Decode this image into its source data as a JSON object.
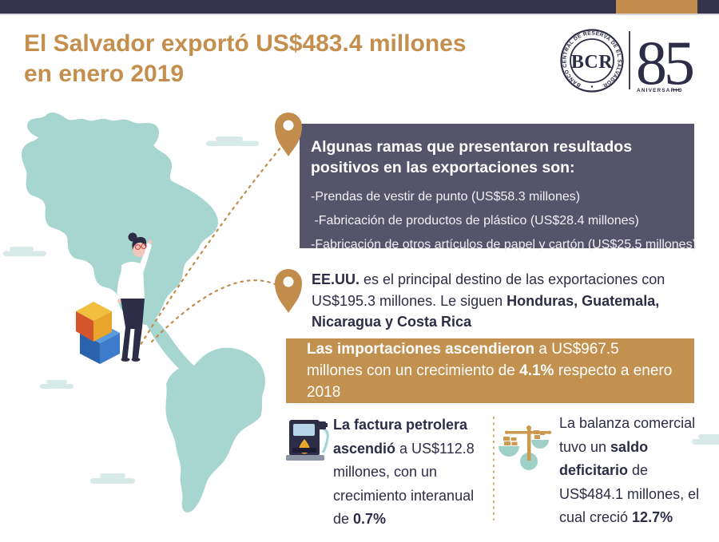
{
  "header": {
    "title_line1": "El Salvador exportó US$483.4 millones",
    "title_line2": "en enero 2019",
    "logo": {
      "ring_text": "BANCO CENTRAL DE RESERVA DE EL SALVADOR",
      "monogram": "BCR",
      "anniversary_number": "85",
      "anniversary_label": "ANIVERSARIO"
    }
  },
  "export_branches": {
    "heading": "Algunas ramas que presentaron resultados positivos en las exportaciones son:",
    "items": [
      "-Prendas de vestir de punto (US$58.3 millones)",
      " -Fabricación de productos de plástico (US$28.4 millones)",
      "-Fabricación de otros artículos de papel y cartón (US$25.5 millones)"
    ]
  },
  "destination": {
    "segments": [
      {
        "t": "EE.UU.",
        "b": true
      },
      {
        "t": " es el principal destino de las exportaciones con US$195.3 millones. Le siguen ",
        "b": false
      },
      {
        "t": "Honduras, Guatemala, Nicaragua y Costa Rica",
        "b": true
      }
    ]
  },
  "imports": {
    "segments": [
      {
        "t": "Las importaciones ascendieron",
        "b": true
      },
      {
        "t": " a US$967.5 millones con un crecimiento de ",
        "b": false
      },
      {
        "t": "4.1%",
        "b": true
      },
      {
        "t": " respecto a enero 2018",
        "b": false
      }
    ]
  },
  "oil_bill": {
    "segments": [
      {
        "t": "La factura petrolera ascendió",
        "b": true
      },
      {
        "t": " a US$112.8 millones, con un crecimiento interanual de ",
        "b": false
      },
      {
        "t": "0.7%",
        "b": true
      }
    ]
  },
  "trade_balance": {
    "segments": [
      {
        "t": "La balanza comercial tuvo un ",
        "b": false
      },
      {
        "t": "saldo deficitario",
        "b": true
      },
      {
        "t": " de US$484.1 millones, el cual creció ",
        "b": false
      },
      {
        "t": "12.7%",
        "b": true
      }
    ]
  },
  "icons": {
    "location_pin": "map-pin-icon",
    "fuel_pump": "fuel-pump-icon",
    "balance_scale": "balance-scale-icon",
    "bcr_seal": "bcr-seal-logo"
  },
  "colors": {
    "navy_bar": "#34334d",
    "text_navy": "#2d2d47",
    "accent_gold": "#c28d4c",
    "branches_box": "#55546a",
    "imports_box": "#c2914f",
    "map_teal": "#a7d6d0",
    "cloud_teal": "#d7eae8"
  }
}
